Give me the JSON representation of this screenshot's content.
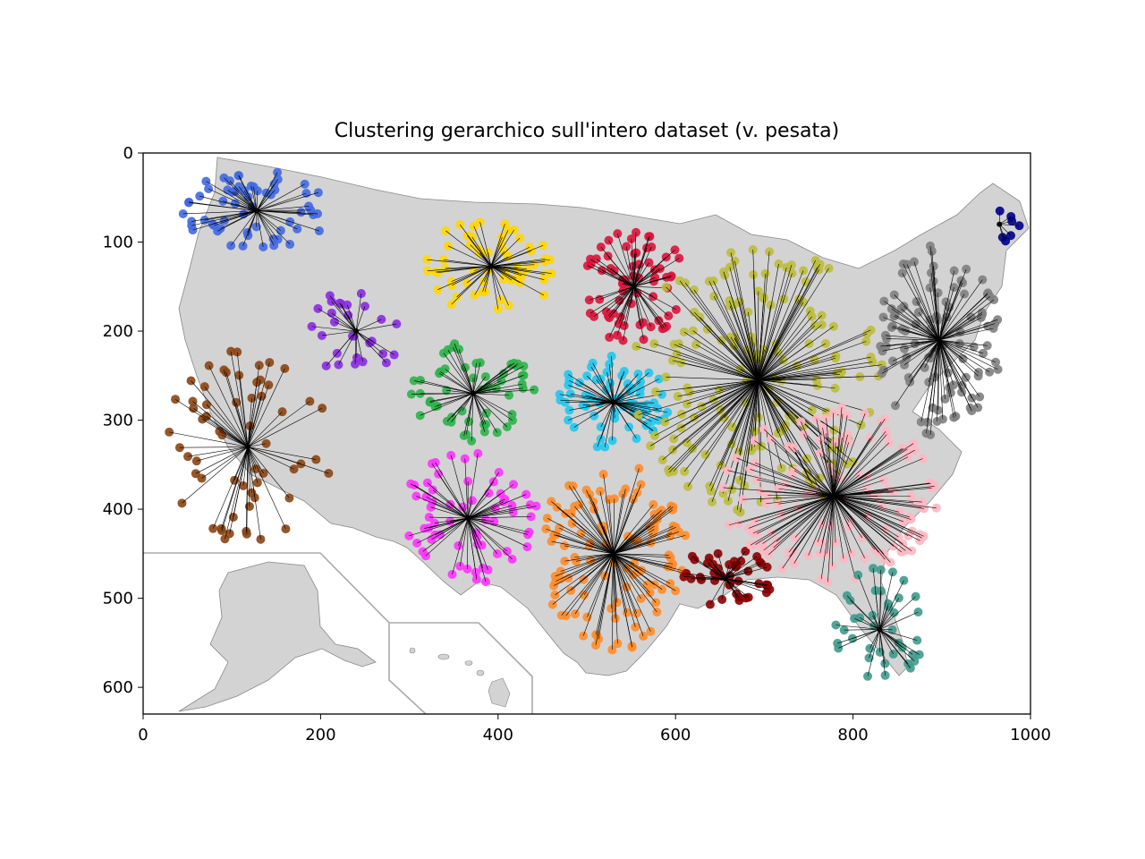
{
  "title": "Clustering gerarchico sull'intero dataset (v. pesata)",
  "map_fill": "#d3d3d3",
  "map_border": "#888888",
  "inset_border": "#aaaaaa",
  "chart_data": {
    "type": "scatter",
    "title": "Clustering gerarchico sull'intero dataset (v. pesata)",
    "xlabel": "",
    "ylabel": "",
    "xlim": [
      0,
      1000
    ],
    "ylim": [
      630,
      0
    ],
    "y_inverted": true,
    "x_ticks": [
      "0",
      "200",
      "400",
      "600",
      "800",
      "1000"
    ],
    "y_ticks": [
      "0",
      "100",
      "200",
      "300",
      "400",
      "500",
      "600"
    ],
    "legend": "none",
    "clusters": [
      {
        "color": "#4169e1",
        "center": [
          128,
          65
        ],
        "spread": [
          85,
          45
        ],
        "n": 60
      },
      {
        "color": "#8a2be2",
        "center": [
          240,
          200
        ],
        "spread": [
          55,
          50
        ],
        "n": 28
      },
      {
        "color": "#8b4513",
        "center": [
          118,
          330
        ],
        "spread": [
          95,
          110
        ],
        "n": 60
      },
      {
        "color": "#ffd700",
        "center": [
          392,
          127
        ],
        "spread": [
          75,
          55
        ],
        "n": 60
      },
      {
        "color": "#dc143c",
        "center": [
          553,
          150
        ],
        "spread": [
          60,
          65
        ],
        "n": 70
      },
      {
        "color": "#2db34a",
        "center": [
          372,
          270
        ],
        "spread": [
          70,
          60
        ],
        "n": 55
      },
      {
        "color": "#22c7ee",
        "center": [
          530,
          280
        ],
        "spread": [
          65,
          55
        ],
        "n": 70
      },
      {
        "color": "#ff33ff",
        "center": [
          366,
          410
        ],
        "spread": [
          80,
          75
        ],
        "n": 65
      },
      {
        "color": "#ff8c2a",
        "center": [
          530,
          450
        ],
        "spread": [
          85,
          110
        ],
        "n": 120
      },
      {
        "color": "#8b0000",
        "center": [
          656,
          478
        ],
        "spread": [
          55,
          35
        ],
        "n": 45
      },
      {
        "color": "#bdbd3c",
        "center": [
          693,
          255
        ],
        "spread": [
          150,
          150
        ],
        "n": 180
      },
      {
        "color": "#808080",
        "center": [
          897,
          210
        ],
        "spread": [
          70,
          110
        ],
        "n": 110
      },
      {
        "color": "#ffb6c1",
        "center": [
          778,
          385
        ],
        "spread": [
          125,
          100
        ],
        "n": 140
      },
      {
        "color": "#3f9a8c",
        "center": [
          830,
          535
        ],
        "spread": [
          50,
          70
        ],
        "n": 40
      },
      {
        "color": "#00008b",
        "center": [
          965,
          80
        ],
        "spread": [
          25,
          20
        ],
        "n": 7
      }
    ]
  }
}
